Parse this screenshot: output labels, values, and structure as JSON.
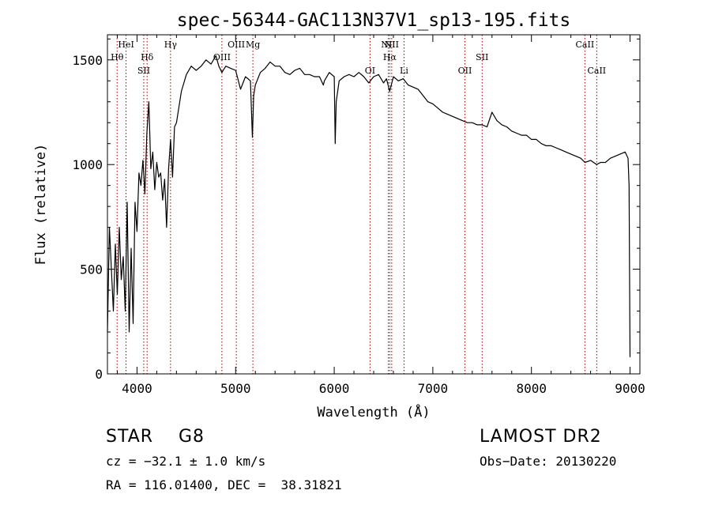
{
  "chart_data": {
    "type": "line",
    "title": "spec-56344-GAC113N37V1_sp13-195.fits",
    "xlabel": "Wavelength (Å)",
    "ylabel": "Flux (relative)",
    "xlim": [
      3700,
      9100
    ],
    "ylim": [
      0,
      1620
    ],
    "x_ticks": [
      4000,
      5000,
      6000,
      7000,
      8000,
      9000
    ],
    "y_ticks": [
      0,
      500,
      1000,
      1500
    ],
    "grid": false,
    "series": [
      {
        "name": "flux",
        "x": [
          3700,
          3720,
          3740,
          3760,
          3780,
          3800,
          3820,
          3840,
          3860,
          3880,
          3900,
          3920,
          3940,
          3960,
          3980,
          4000,
          4020,
          4040,
          4060,
          4080,
          4100,
          4120,
          4140,
          4160,
          4180,
          4200,
          4220,
          4240,
          4260,
          4280,
          4300,
          4320,
          4340,
          4360,
          4380,
          4400,
          4450,
          4500,
          4550,
          4600,
          4650,
          4700,
          4750,
          4800,
          4830,
          4861,
          4900,
          4950,
          5000,
          5050,
          5100,
          5150,
          5170,
          5183,
          5200,
          5250,
          5300,
          5350,
          5400,
          5450,
          5500,
          5550,
          5600,
          5650,
          5700,
          5750,
          5800,
          5850,
          5890,
          5900,
          5950,
          6000,
          6010,
          6020,
          6050,
          6100,
          6150,
          6200,
          6250,
          6300,
          6350,
          6400,
          6450,
          6500,
          6530,
          6563,
          6600,
          6650,
          6700,
          6750,
          6800,
          6850,
          6900,
          6950,
          7000,
          7050,
          7100,
          7150,
          7200,
          7250,
          7300,
          7350,
          7400,
          7450,
          7500,
          7550,
          7600,
          7650,
          7700,
          7750,
          7800,
          7850,
          7900,
          7950,
          8000,
          8050,
          8100,
          8150,
          8200,
          8250,
          8300,
          8350,
          8400,
          8450,
          8500,
          8542,
          8600,
          8662,
          8700,
          8750,
          8800,
          8850,
          8900,
          8950,
          8980,
          8990,
          9000
        ],
        "values": [
          200,
          700,
          500,
          300,
          620,
          380,
          700,
          450,
          560,
          300,
          820,
          200,
          600,
          240,
          820,
          680,
          960,
          900,
          1020,
          860,
          1150,
          1300,
          980,
          1060,
          880,
          1010,
          940,
          960,
          830,
          930,
          700,
          980,
          1120,
          940,
          1180,
          1200,
          1350,
          1430,
          1470,
          1450,
          1470,
          1500,
          1480,
          1520,
          1470,
          1440,
          1470,
          1460,
          1450,
          1360,
          1420,
          1400,
          1130,
          1330,
          1380,
          1440,
          1460,
          1490,
          1470,
          1470,
          1440,
          1430,
          1450,
          1460,
          1430,
          1430,
          1420,
          1420,
          1380,
          1400,
          1440,
          1420,
          1100,
          1300,
          1400,
          1420,
          1430,
          1420,
          1440,
          1420,
          1390,
          1420,
          1430,
          1390,
          1410,
          1350,
          1420,
          1400,
          1410,
          1380,
          1370,
          1360,
          1330,
          1300,
          1290,
          1270,
          1250,
          1240,
          1230,
          1220,
          1210,
          1200,
          1200,
          1190,
          1190,
          1180,
          1250,
          1210,
          1190,
          1180,
          1160,
          1150,
          1140,
          1140,
          1120,
          1120,
          1100,
          1090,
          1090,
          1080,
          1070,
          1060,
          1050,
          1040,
          1030,
          1010,
          1020,
          1000,
          1010,
          1010,
          1030,
          1040,
          1050,
          1060,
          1030,
          900,
          80
        ]
      }
    ],
    "lines": [
      {
        "label": "Hθ",
        "x": 3798
      },
      {
        "label": "HeI",
        "x": 3889
      },
      {
        "label": "SII",
        "x": 4068
      },
      {
        "label": "Hδ",
        "x": 4102
      },
      {
        "label": "Hγ",
        "x": 4340
      },
      {
        "label": "OIII",
        "x": 4861
      },
      {
        "label": "OIII",
        "x": 5007
      },
      {
        "label": "Mg",
        "x": 5175
      },
      {
        "label": "OI",
        "x": 6363
      },
      {
        "label": "NII",
        "x": 6548
      },
      {
        "label": "Hα",
        "x": 6563
      },
      {
        "label": "NII",
        "x": 6583
      },
      {
        "label": "Li",
        "x": 6708
      },
      {
        "label": "OII",
        "x": 7325
      },
      {
        "label": "SII",
        "x": 7500
      },
      {
        "label": "CaII",
        "x": 8542
      },
      {
        "label": "CaII",
        "x": 8662
      }
    ]
  },
  "info": {
    "object": "STAR    G8",
    "survey": "LAMOST DR2",
    "cz": "cz = −32.1 ± 1.0 km/s",
    "obs_date": "Obs−Date: 20130220",
    "radec": "RA = 116.01400, DEC =  38.31821"
  },
  "colors": {
    "line": "#000000",
    "marker": "#8b0000"
  }
}
